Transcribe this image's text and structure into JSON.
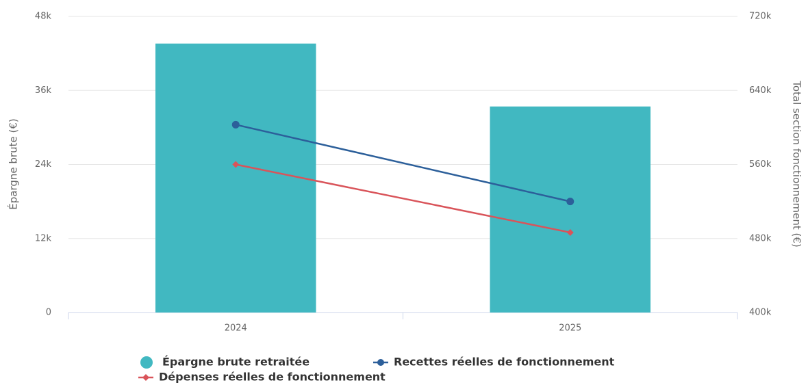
{
  "chart_data": {
    "type": "bar-line",
    "categories": [
      "2024",
      "2025"
    ],
    "y_title": "Épargne brute (€)",
    "y2_title": "Total section fonctionnement (€)",
    "ylim": [
      0,
      48000
    ],
    "yticks": [
      0,
      {
        "value": 12000,
        "label": "12k"
      },
      {
        "value": 24000,
        "label": "24k"
      },
      {
        "value": 36000,
        "label": "36k"
      },
      {
        "value": 48000,
        "label": "48k"
      }
    ],
    "y2lim": [
      400000,
      720000
    ],
    "y2ticks": [
      {
        "value": 400000,
        "label": "400k"
      },
      {
        "value": 480000,
        "label": "480k"
      },
      {
        "value": 560000,
        "label": "560k"
      },
      {
        "value": 640000,
        "label": "640k"
      },
      {
        "value": 720000,
        "label": "720k"
      }
    ],
    "grid": true,
    "legend": "bottom",
    "series": [
      {
        "name": "Épargne brute retraitée",
        "type": "bar",
        "color": "#41b8c1",
        "values": [
          43600,
          33400
        ]
      },
      {
        "name": "Recettes réelles de fonctionnement",
        "type": "line",
        "axis": "y2",
        "marker": "circle",
        "color": "#2c5f9a",
        "values": [
          603000,
          520000
        ]
      },
      {
        "name": "Dépenses réelles de fonctionnement",
        "type": "line",
        "axis": "y2",
        "marker": "diamond",
        "color": "#d9545a",
        "values": [
          560000,
          486500
        ]
      }
    ]
  }
}
